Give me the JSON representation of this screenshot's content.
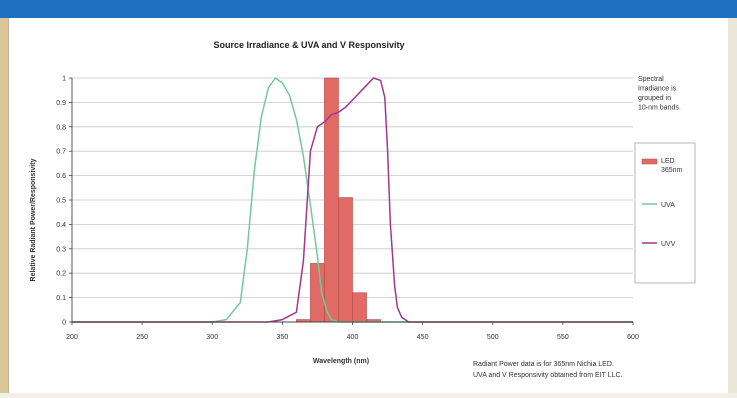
{
  "chart_data": {
    "type": "bar",
    "title": "Source Irradiance & UVA and V Responsivity",
    "xlabel": "Wavelength (nm)",
    "ylabel": "Relative Radiant Power/Responsivity",
    "xlim": [
      200,
      600
    ],
    "ylim": [
      0,
      1
    ],
    "x_ticks": [
      200,
      250,
      300,
      350,
      400,
      450,
      500,
      550,
      600
    ],
    "y_ticks": [
      0,
      0.1,
      0.2,
      0.3,
      0.4,
      0.5,
      0.6,
      0.7,
      0.8,
      0.9,
      1
    ],
    "bar_series": {
      "name": "LED 365nm",
      "color": "#e06a66",
      "bin_width": 10,
      "bins": [
        {
          "x": 360,
          "value": 0.01
        },
        {
          "x": 370,
          "value": 0.24
        },
        {
          "x": 380,
          "value": 1.0
        },
        {
          "x": 390,
          "value": 0.51
        },
        {
          "x": 400,
          "value": 0.12
        },
        {
          "x": 410,
          "value": 0.01
        }
      ]
    },
    "series": [
      {
        "name": "UVA",
        "color": "#74c99a",
        "x": [
          200,
          300,
          310,
          320,
          325,
          330,
          335,
          340,
          345,
          350,
          355,
          360,
          365,
          370,
          375,
          378,
          382,
          385,
          390,
          400,
          600
        ],
        "values": [
          0,
          0,
          0.01,
          0.08,
          0.3,
          0.62,
          0.84,
          0.96,
          1.0,
          0.98,
          0.93,
          0.83,
          0.68,
          0.48,
          0.27,
          0.12,
          0.04,
          0.01,
          0,
          0,
          0
        ]
      },
      {
        "name": "UVV",
        "color": "#a3368f",
        "x": [
          200,
          340,
          350,
          360,
          365,
          370,
          375,
          380,
          385,
          390,
          395,
          400,
          405,
          410,
          415,
          420,
          423,
          425,
          427,
          430,
          432,
          435,
          440,
          600
        ],
        "values": [
          0,
          0,
          0.01,
          0.04,
          0.25,
          0.7,
          0.8,
          0.82,
          0.85,
          0.86,
          0.88,
          0.91,
          0.94,
          0.97,
          1.0,
          0.99,
          0.92,
          0.7,
          0.4,
          0.15,
          0.06,
          0.02,
          0,
          0
        ]
      }
    ],
    "legend": {
      "placement": "right",
      "note": "Spectral Irradiance is grouped in 10-nm bands.",
      "entries": [
        "LED 365nm",
        "UVA",
        "UVV"
      ]
    },
    "footnote": [
      "Radiant Power data is for 365nm Nichia LED.",
      "UVA and V Responsivity obtained from EIT LLC."
    ]
  }
}
